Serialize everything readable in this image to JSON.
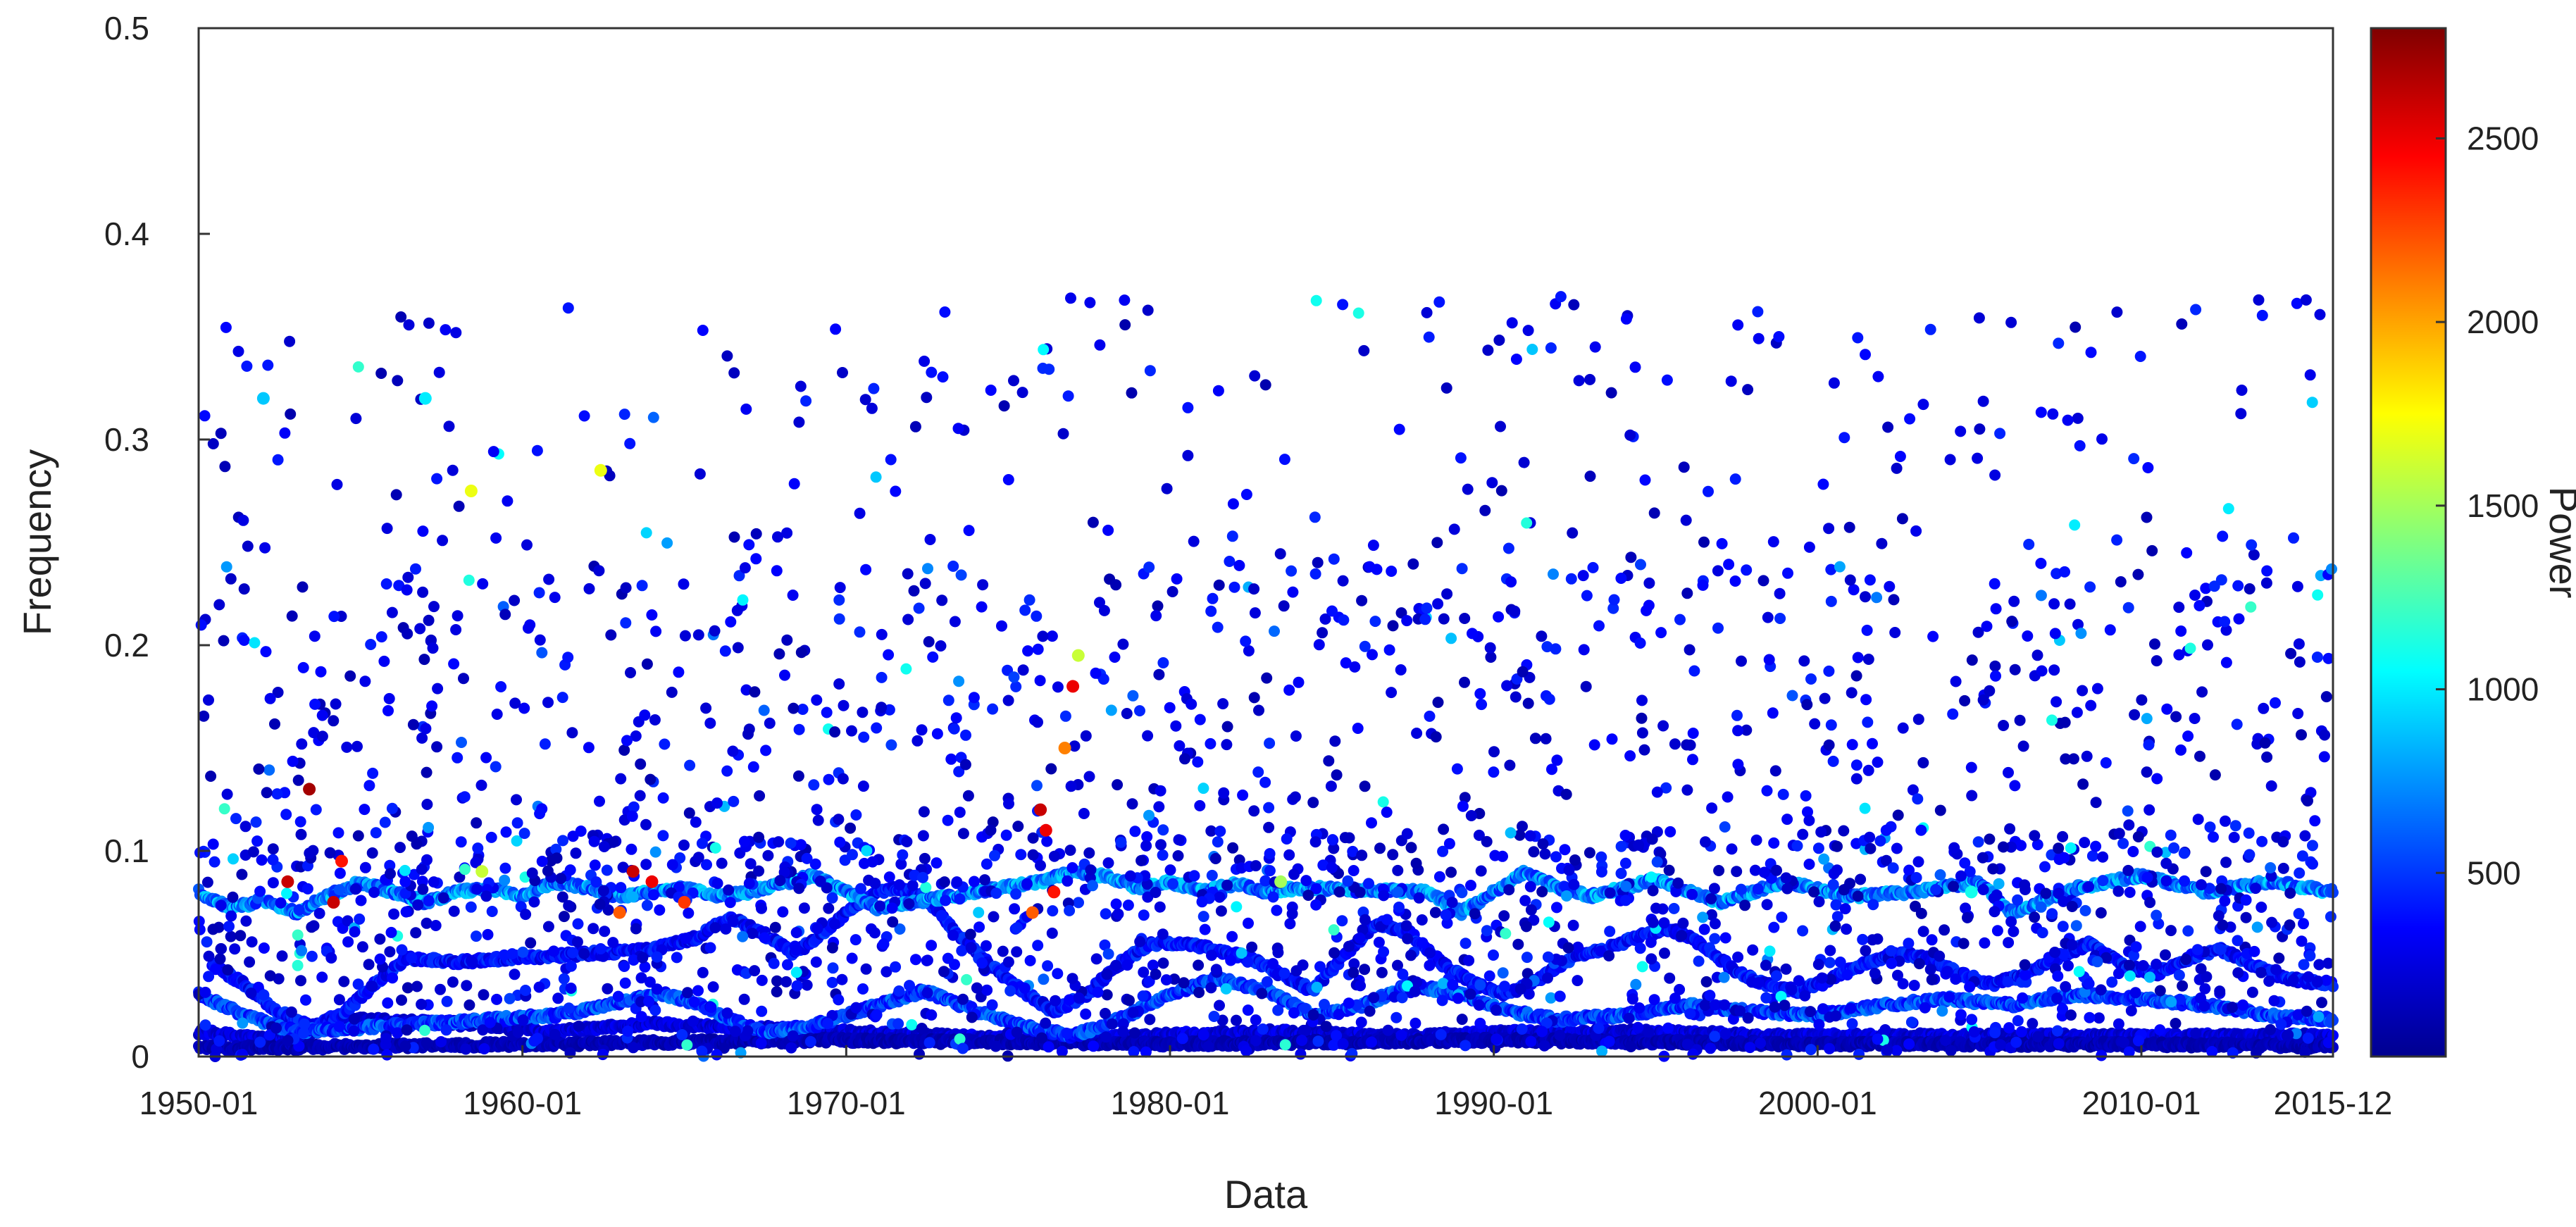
{
  "chart_data": {
    "type": "scatter",
    "title": "",
    "xlabel": "Data",
    "ylabel": "Frequency",
    "colorbar_label": "Power",
    "x_scale": "time (months)",
    "xlim": [
      "1950-01",
      "2015-12"
    ],
    "ylim": [
      0,
      0.5
    ],
    "x_ticks": [
      "1950-01",
      "1960-01",
      "1970-01",
      "1980-01",
      "1990-01",
      "2000-01",
      "2010-01",
      "2015-12"
    ],
    "y_ticks": [
      0,
      0.1,
      0.2,
      0.3,
      0.4,
      0.5
    ],
    "y_tick_labels": [
      "0",
      "0.1",
      "0.2",
      "0.3",
      "0.4",
      "0.5"
    ],
    "colorbar_ticks": [
      500,
      1000,
      1500,
      2000,
      2500
    ],
    "colorbar_tick_labels": [
      "500",
      "1000",
      "1500",
      "2000",
      "2500"
    ],
    "colorbar_range": [
      0,
      2800
    ],
    "colormap": "jet",
    "grid": false,
    "marker_color_dominant": "#0a1a8c",
    "bands": [
      {
        "name": "",
        "points": [
          [
            "1950-01",
            0.012
          ],
          [
            "1952-06",
            0.008
          ],
          [
            "1955-01",
            0.018
          ],
          [
            "1958-01",
            0.016
          ],
          [
            "1961-01",
            0.012
          ],
          [
            "1964-01",
            0.016
          ],
          [
            "1967-01",
            0.014
          ],
          [
            "1970-01",
            0.012
          ],
          [
            "1973-01",
            0.01
          ],
          [
            "1976-01",
            0.008
          ],
          [
            "1979-01",
            0.01
          ],
          [
            "1983-01",
            0.012
          ],
          [
            "1987-01",
            0.01
          ],
          [
            "1991-01",
            0.012
          ],
          [
            "1995-01",
            0.012
          ],
          [
            "1999-01",
            0.01
          ],
          [
            "2003-01",
            0.01
          ],
          [
            "2007-01",
            0.01
          ],
          [
            "2011-01",
            0.01
          ],
          [
            "2015-12",
            0.01
          ]
        ],
        "power": 250
      },
      {
        "name": "",
        "points": [
          [
            "1950-01",
            0.004
          ],
          [
            "1960-01",
            0.006
          ],
          [
            "1970-01",
            0.008
          ],
          [
            "1980-01",
            0.006
          ],
          [
            "1990-01",
            0.008
          ],
          [
            "2000-01",
            0.006
          ],
          [
            "2010-01",
            0.006
          ],
          [
            "2015-12",
            0.005
          ]
        ],
        "power": 150
      },
      {
        "name": "",
        "points": [
          [
            "1950-06",
            0.045
          ],
          [
            "1951-06",
            0.035
          ],
          [
            "1952-06",
            0.022
          ],
          [
            "1953-06",
            0.015
          ],
          [
            "1954-06",
            0.02
          ],
          [
            "1955-06",
            0.035
          ],
          [
            "1956-06",
            0.048
          ],
          [
            "1958-01",
            0.046
          ],
          [
            "1960-01",
            0.048
          ],
          [
            "1962-01",
            0.05
          ],
          [
            "1964-01",
            0.052
          ],
          [
            "1965-06",
            0.058
          ],
          [
            "1966-06",
            0.068
          ],
          [
            "1967-06",
            0.06
          ],
          [
            "1968-06",
            0.05
          ],
          [
            "1969-06",
            0.062
          ],
          [
            "1970-06",
            0.075
          ],
          [
            "1971-06",
            0.082
          ],
          [
            "1972-06",
            0.078
          ],
          [
            "1973-06",
            0.06
          ],
          [
            "1974-06",
            0.045
          ],
          [
            "1975-06",
            0.032
          ],
          [
            "1976-06",
            0.022
          ],
          [
            "1977-06",
            0.03
          ],
          [
            "1978-06",
            0.045
          ],
          [
            "1979-06",
            0.055
          ],
          [
            "1980-06",
            0.055
          ],
          [
            "1981-06",
            0.052
          ],
          [
            "1982-06",
            0.048
          ],
          [
            "1983-06",
            0.04
          ],
          [
            "1984-06",
            0.032
          ],
          [
            "1985-06",
            0.05
          ],
          [
            "1986-06",
            0.065
          ],
          [
            "1987-06",
            0.06
          ],
          [
            "1988-06",
            0.045
          ],
          [
            "1989-06",
            0.035
          ],
          [
            "1990-06",
            0.03
          ],
          [
            "1991-06",
            0.038
          ],
          [
            "1992-06",
            0.048
          ],
          [
            "1993-06",
            0.052
          ],
          [
            "1994-06",
            0.058
          ],
          [
            "1995-06",
            0.062
          ],
          [
            "1996-06",
            0.055
          ],
          [
            "1997-06",
            0.042
          ],
          [
            "1998-06",
            0.035
          ],
          [
            "1999-06",
            0.032
          ],
          [
            "2000-06",
            0.038
          ],
          [
            "2001-06",
            0.045
          ],
          [
            "2002-06",
            0.05
          ],
          [
            "2003-06",
            0.048
          ],
          [
            "2004-06",
            0.04
          ],
          [
            "2005-06",
            0.035
          ],
          [
            "2006-06",
            0.04
          ],
          [
            "2007-06",
            0.048
          ],
          [
            "2008-06",
            0.055
          ],
          [
            "2009-06",
            0.045
          ],
          [
            "2010-06",
            0.04
          ],
          [
            "2011-06",
            0.048
          ],
          [
            "2012-06",
            0.052
          ],
          [
            "2013-06",
            0.045
          ],
          [
            "2014-06",
            0.038
          ],
          [
            "2015-12",
            0.035
          ]
        ],
        "power": 380
      },
      {
        "name": "",
        "points": [
          [
            "1950-01",
            0.03
          ],
          [
            "1951-06",
            0.02
          ],
          [
            "1953-01",
            0.012
          ],
          [
            "1955-01",
            0.014
          ],
          [
            "1957-01",
            0.016
          ],
          [
            "1959-01",
            0.018
          ],
          [
            "1961-01",
            0.02
          ],
          [
            "1962-06",
            0.024
          ],
          [
            "1963-06",
            0.028
          ],
          [
            "1964-06",
            0.03
          ],
          [
            "1965-06",
            0.026
          ],
          [
            "1966-06",
            0.018
          ],
          [
            "1967-06",
            0.012
          ],
          [
            "1969-01",
            0.015
          ],
          [
            "1971-01",
            0.025
          ],
          [
            "1972-06",
            0.032
          ],
          [
            "1974-01",
            0.022
          ],
          [
            "1975-06",
            0.015
          ],
          [
            "1977-01",
            0.01
          ],
          [
            "1978-06",
            0.018
          ],
          [
            "1980-01",
            0.03
          ],
          [
            "1981-06",
            0.038
          ],
          [
            "1983-01",
            0.032
          ],
          [
            "1984-06",
            0.02
          ],
          [
            "1986-01",
            0.025
          ],
          [
            "1987-06",
            0.035
          ],
          [
            "1989-01",
            0.03
          ],
          [
            "1990-06",
            0.022
          ],
          [
            "1992-01",
            0.018
          ],
          [
            "1994-01",
            0.02
          ],
          [
            "1996-01",
            0.025
          ],
          [
            "1998-01",
            0.022
          ],
          [
            "2000-01",
            0.02
          ],
          [
            "2002-01",
            0.025
          ],
          [
            "2004-01",
            0.028
          ],
          [
            "2006-01",
            0.025
          ],
          [
            "2008-01",
            0.03
          ],
          [
            "2010-01",
            0.028
          ],
          [
            "2012-01",
            0.025
          ],
          [
            "2014-01",
            0.02
          ],
          [
            "2015-12",
            0.018
          ]
        ],
        "power": 520
      },
      {
        "name": "",
        "points": [
          [
            "1950-01",
            0.08
          ],
          [
            "1951-01",
            0.072
          ],
          [
            "1952-01",
            0.076
          ],
          [
            "1953-01",
            0.07
          ],
          [
            "1954-01",
            0.078
          ],
          [
            "1955-01",
            0.085
          ],
          [
            "1956-01",
            0.08
          ],
          [
            "1957-01",
            0.075
          ],
          [
            "1958-01",
            0.08
          ],
          [
            "1959-01",
            0.082
          ],
          [
            "1960-01",
            0.078
          ],
          [
            "1961-01",
            0.085
          ],
          [
            "1962-01",
            0.082
          ],
          [
            "1963-01",
            0.078
          ],
          [
            "1964-01",
            0.08
          ],
          [
            "1965-01",
            0.082
          ],
          [
            "1966-01",
            0.078
          ],
          [
            "1967-01",
            0.08
          ],
          [
            "1968-01",
            0.084
          ],
          [
            "1969-01",
            0.088
          ],
          [
            "1970-01",
            0.08
          ],
          [
            "1971-01",
            0.072
          ],
          [
            "1976-01",
            0.085
          ],
          [
            "1977-01",
            0.09
          ],
          [
            "1978-01",
            0.088
          ],
          [
            "1979-01",
            0.082
          ],
          [
            "1980-01",
            0.085
          ],
          [
            "1981-01",
            0.08
          ],
          [
            "1982-01",
            0.084
          ],
          [
            "1983-01",
            0.08
          ],
          [
            "1984-01",
            0.082
          ],
          [
            "1988-01",
            0.08
          ],
          [
            "1989-01",
            0.07
          ],
          [
            "1991-01",
            0.09
          ],
          [
            "1992-01",
            0.082
          ],
          [
            "1993-01",
            0.078
          ],
          [
            "1995-01",
            0.086
          ],
          [
            "1997-01",
            0.075
          ],
          [
            "1999-01",
            0.085
          ],
          [
            "2001-01",
            0.078
          ],
          [
            "2003-01",
            0.08
          ],
          [
            "2005-01",
            0.085
          ],
          [
            "2006-01",
            0.07
          ],
          [
            "2008-01",
            0.082
          ],
          [
            "2010-01",
            0.088
          ],
          [
            "2012-01",
            0.08
          ],
          [
            "2014-01",
            0.085
          ],
          [
            "2015-12",
            0.08
          ]
        ],
        "power": 700
      }
    ],
    "hotspots": [
      {
        "x": "1952-10",
        "y": 0.085,
        "power": 2600
      },
      {
        "x": "1953-06",
        "y": 0.13,
        "power": 2700
      },
      {
        "x": "1954-03",
        "y": 0.075,
        "power": 2600
      },
      {
        "x": "1954-06",
        "y": 0.095,
        "power": 2400
      },
      {
        "x": "1958-06",
        "y": 0.275,
        "power": 1700
      },
      {
        "x": "1962-06",
        "y": 0.285,
        "power": 1700
      },
      {
        "x": "1963-06",
        "y": 0.09,
        "power": 2600
      },
      {
        "x": "1964-01",
        "y": 0.085,
        "power": 2500
      },
      {
        "x": "1963-01",
        "y": 0.07,
        "power": 2200
      },
      {
        "x": "1965-01",
        "y": 0.075,
        "power": 2300
      },
      {
        "x": "1976-01",
        "y": 0.12,
        "power": 2600
      },
      {
        "x": "1976-03",
        "y": 0.11,
        "power": 2500
      },
      {
        "x": "1977-01",
        "y": 0.18,
        "power": 2500
      },
      {
        "x": "1976-10",
        "y": 0.15,
        "power": 2100
      },
      {
        "x": "1977-03",
        "y": 0.195,
        "power": 1600
      },
      {
        "x": "1976-06",
        "y": 0.08,
        "power": 2400
      },
      {
        "x": "1975-10",
        "y": 0.07,
        "power": 2200
      },
      {
        "x": "1957-01",
        "y": 0.32,
        "power": 1000
      },
      {
        "x": "1952-01",
        "y": 0.32,
        "power": 900
      },
      {
        "x": "1958-10",
        "y": 0.09,
        "power": 1600
      },
      {
        "x": "1983-06",
        "y": 0.085,
        "power": 1500
      },
      {
        "x": "2004-10",
        "y": 0.08,
        "power": 1100
      }
    ],
    "n_scatter_points": 2600
  }
}
